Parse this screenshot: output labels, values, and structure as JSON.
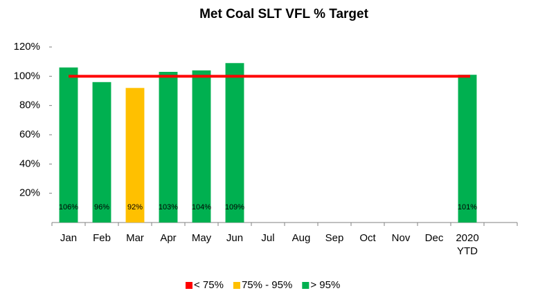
{
  "chart_data": {
    "type": "bar",
    "title": "Met Coal SLT VFL % Target",
    "categories": [
      "Jan",
      "Feb",
      "Mar",
      "Apr",
      "May",
      "Jun",
      "Jul",
      "Aug",
      "Sep",
      "Oct",
      "Nov",
      "Dec",
      "2020 YTD",
      null
    ],
    "values": [
      106,
      96,
      92,
      103,
      104,
      109,
      null,
      null,
      null,
      null,
      null,
      null,
      101,
      null
    ],
    "value_labels": [
      "106%",
      "96%",
      "92%",
      "103%",
      "104%",
      "109%",
      null,
      null,
      null,
      null,
      null,
      null,
      "101%",
      null
    ],
    "colors": [
      "#00b050",
      "#00b050",
      "#ffc000",
      "#00b050",
      "#00b050",
      "#00b050",
      null,
      null,
      null,
      null,
      null,
      null,
      "#00b050",
      null
    ],
    "target": {
      "value": 100,
      "color": "#ff0000"
    },
    "legend": [
      {
        "name": "< 75%",
        "color": "#ff0000"
      },
      {
        "name": "75% - 95%",
        "color": "#ffc000"
      },
      {
        "name": "> 95%",
        "color": "#00b050"
      }
    ],
    "ylim": [
      0,
      120
    ],
    "yticks": [
      {
        "value": 20,
        "label": "20%"
      },
      {
        "value": 40,
        "label": "40%"
      },
      {
        "value": 60,
        "label": "60%"
      },
      {
        "value": 80,
        "label": "80%"
      },
      {
        "value": 100,
        "label": "100%"
      },
      {
        "value": 120,
        "label": "120%"
      }
    ]
  }
}
